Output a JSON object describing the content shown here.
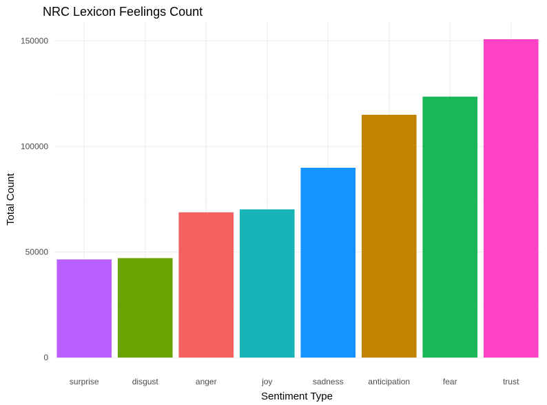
{
  "chart_data": {
    "type": "bar",
    "title": "NRC Lexicon Feelings Count",
    "xlabel": "Sentiment Type",
    "ylabel": "Total Count",
    "categories": [
      "surprise",
      "disgust",
      "anger",
      "joy",
      "sadness",
      "anticipation",
      "fear",
      "trust"
    ],
    "values": [
      46500,
      47100,
      68800,
      70200,
      89900,
      115000,
      123600,
      150800
    ],
    "colors": [
      "#B95FFF",
      "#6BA305",
      "#F56060",
      "#17B5B8",
      "#1494FF",
      "#C28300",
      "#19B857",
      "#FF43C7"
    ],
    "ylim": [
      0,
      158000
    ],
    "yticks": [
      0,
      50000,
      100000,
      150000
    ],
    "ytick_labels": [
      "0",
      "50000",
      "100000",
      "150000"
    ],
    "grid": true,
    "legend": "none"
  }
}
